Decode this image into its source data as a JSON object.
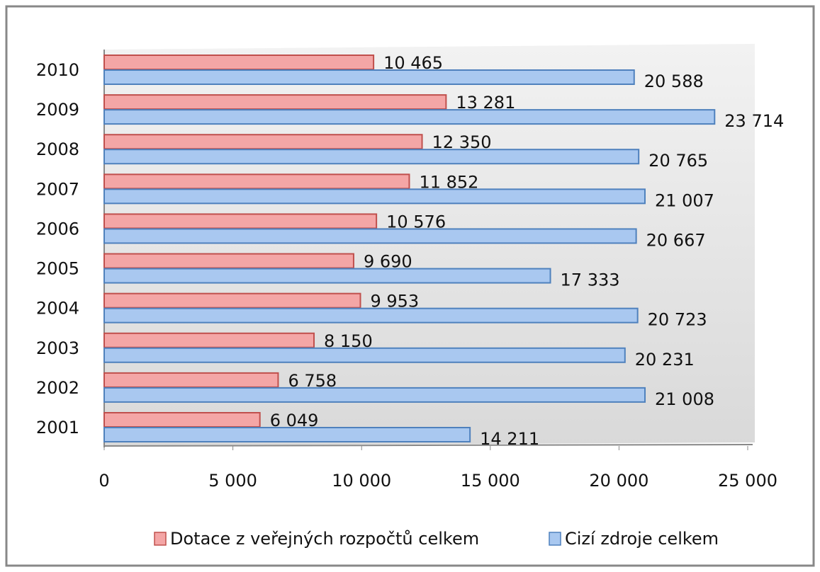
{
  "chart_data": {
    "type": "bar",
    "orientation": "horizontal",
    "categories": [
      "2001",
      "2002",
      "2003",
      "2004",
      "2005",
      "2006",
      "2007",
      "2008",
      "2009",
      "2010"
    ],
    "series": [
      {
        "name": "Dotace z veřejných rozpočtů celkem",
        "color": "#f4a6a6",
        "values": [
          6049,
          6758,
          8150,
          9953,
          9690,
          10576,
          11852,
          12350,
          13281,
          10465
        ],
        "value_labels": [
          "6 049",
          "6 758",
          "8 150",
          "9 953",
          "9 690",
          "10 576",
          "11 852",
          "12 350",
          "13 281",
          "10 465"
        ]
      },
      {
        "name": "Cizí zdroje celkem",
        "color": "#a9c8f0",
        "values": [
          14211,
          21008,
          20231,
          20723,
          17333,
          20667,
          21007,
          20765,
          23714,
          20588
        ],
        "value_labels": [
          "14 211",
          "21 008",
          "20 231",
          "20 723",
          "17 333",
          "20 667",
          "21 007",
          "20 765",
          "23 714",
          "20 588"
        ]
      }
    ],
    "xlim": [
      0,
      25000
    ],
    "xticks": [
      0,
      {
        "value": 5000,
        "label": "5 000"
      },
      {
        "value": 10000,
        "label": "10 000"
      },
      {
        "value": 15000,
        "label": "15 000"
      },
      {
        "value": 20000,
        "label": "20 000"
      },
      {
        "value": 25000,
        "label": "25 000"
      }
    ],
    "legend": "bottom"
  }
}
